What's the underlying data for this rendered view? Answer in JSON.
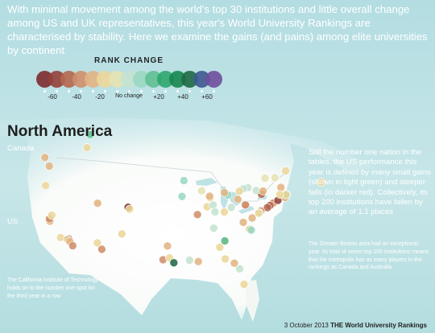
{
  "intro": "With minimal movement among the world's top 30 institutions and little overall change among US and UK representatives, this year's World University Rankings are characterised by stability. Here we examine the gains (and pains) among elite universities by continent",
  "legend": {
    "title": "RANK CHANGE",
    "labels": [
      "-60",
      "-40",
      "-20",
      "No change",
      "+20",
      "+40",
      "+60"
    ],
    "swatches": [
      "#7d2a2d",
      "#94403a",
      "#b5674e",
      "#cf8f6b",
      "#e2b483",
      "#ecd79a",
      "#e5e3b2",
      "#c4e3cf",
      "#9ad8c1",
      "#5fbf91",
      "#2ea66e",
      "#17874f",
      "#1f6a44",
      "#3f5990",
      "#6e4f9c"
    ]
  },
  "region": "North America",
  "countries": {
    "canada": "Canada",
    "us": "US"
  },
  "notes": {
    "us_summary": "Still the number one nation in the tables, the US performance this year is defined by many small gains (shown in light green) and steeper falls (in darker red). Collectively, its top 200 institutions have fallen by an average of 1.1 places",
    "boston": "The Greater Boston area had an exceptional year. Its total of seven top 200 institutions means that the metropolis has as many players in the rankings as Canada and Australia",
    "caltech": "The California Institute of Technology holds on to the number one spot for the third year in a row"
  },
  "footer": {
    "date": "3 October 2013",
    "publication": "THE World University Rankings"
  },
  "colors": {
    "background": "#b7dfe3",
    "land": "#f7f8f5",
    "water": "#bfe2e5",
    "marker_stroke": "#ffffff"
  },
  "universities": [
    {
      "lon": -122.3,
      "lat": 47.65,
      "color": "#e2b483"
    },
    {
      "lon": -123.25,
      "lat": 49.26,
      "color": "#e2b483"
    },
    {
      "lon": -113.5,
      "lat": 53.52,
      "color": "#5fbf91"
    },
    {
      "lon": -114.13,
      "lat": 51.08,
      "color": "#ecd79a"
    },
    {
      "lon": -122.17,
      "lat": 37.43,
      "color": "#e2b483"
    },
    {
      "lon": -122.26,
      "lat": 37.87,
      "color": "#cf8f6b"
    },
    {
      "lon": -121.76,
      "lat": 38.54,
      "color": "#ecd79a"
    },
    {
      "lon": -123.08,
      "lat": 44.05,
      "color": "#ecd79a"
    },
    {
      "lon": -119.85,
      "lat": 34.41,
      "color": "#ecd79a"
    },
    {
      "lon": -118.44,
      "lat": 34.07,
      "color": "#b5674e"
    },
    {
      "lon": -118.13,
      "lat": 34.14,
      "color": "#7d2a2d"
    },
    {
      "lon": -118.29,
      "lat": 34.02,
      "color": "#ecd79a"
    },
    {
      "lon": -117.84,
      "lat": 33.64,
      "color": "#e2b483"
    },
    {
      "lon": -117.23,
      "lat": 32.88,
      "color": "#cf8f6b"
    },
    {
      "lon": -111.93,
      "lat": 33.42,
      "color": "#ecd79a"
    },
    {
      "lon": -110.95,
      "lat": 32.23,
      "color": "#cf8f6b"
    },
    {
      "lon": -111.85,
      "lat": 40.76,
      "color": "#e2b483"
    },
    {
      "lon": -105.27,
      "lat": 40.01,
      "color": "#7d2a2d"
    },
    {
      "lon": -104.96,
      "lat": 39.68,
      "color": "#ecd79a"
    },
    {
      "lon": -106.62,
      "lat": 35.08,
      "color": "#ecd79a"
    },
    {
      "lon": -97.74,
      "lat": 30.28,
      "color": "#cf8f6b"
    },
    {
      "lon": -96.34,
      "lat": 30.62,
      "color": "#ecd79a"
    },
    {
      "lon": -95.4,
      "lat": 29.72,
      "color": "#1f6a44"
    },
    {
      "lon": -96.78,
      "lat": 32.84,
      "color": "#e2b483"
    },
    {
      "lon": -93.23,
      "lat": 44.97,
      "color": "#9ad8c1"
    },
    {
      "lon": -89.41,
      "lat": 43.07,
      "color": "#e5e3b2"
    },
    {
      "lon": -93.65,
      "lat": 42.03,
      "color": "#9ad8c1"
    },
    {
      "lon": -87.6,
      "lat": 41.79,
      "color": "#ecd79a"
    },
    {
      "lon": -87.68,
      "lat": 42.06,
      "color": "#e2b483"
    },
    {
      "lon": -88.23,
      "lat": 40.11,
      "color": "#ecd79a"
    },
    {
      "lon": -86.92,
      "lat": 40.42,
      "color": "#c4e3cf"
    },
    {
      "lon": -86.52,
      "lat": 39.17,
      "color": "#c4e3cf"
    },
    {
      "lon": -83.74,
      "lat": 42.28,
      "color": "#9ad8c1"
    },
    {
      "lon": -84.48,
      "lat": 42.73,
      "color": "#e2b483"
    },
    {
      "lon": -83.0,
      "lat": 40.0,
      "color": "#c4e3cf"
    },
    {
      "lon": -81.6,
      "lat": 41.5,
      "color": "#e2b483"
    },
    {
      "lon": -79.4,
      "lat": 43.66,
      "color": "#c4e3cf"
    },
    {
      "lon": -79.96,
      "lat": 40.44,
      "color": "#cf8f6b"
    },
    {
      "lon": -79.94,
      "lat": 40.45,
      "color": "#cf8f6b"
    },
    {
      "lon": -75.7,
      "lat": 45.42,
      "color": "#e5e3b2"
    },
    {
      "lon": -73.58,
      "lat": 45.5,
      "color": "#e5e3b2"
    },
    {
      "lon": -71.27,
      "lat": 46.78,
      "color": "#ecd79a"
    },
    {
      "lon": -63.58,
      "lat": 44.64,
      "color": "#ecd79a"
    },
    {
      "lon": -80.4,
      "lat": 43.47,
      "color": "#c4e3cf"
    },
    {
      "lon": -81.27,
      "lat": 43.0,
      "color": "#ecd79a"
    },
    {
      "lon": -76.48,
      "lat": 42.45,
      "color": "#b5674e"
    },
    {
      "lon": -77.6,
      "lat": 43.13,
      "color": "#c4e3cf"
    },
    {
      "lon": -76.14,
      "lat": 43.04,
      "color": "#e2b483"
    },
    {
      "lon": -73.96,
      "lat": 40.81,
      "color": "#cf8f6b"
    },
    {
      "lon": -74.66,
      "lat": 40.34,
      "color": "#b5674e"
    },
    {
      "lon": -72.92,
      "lat": 41.31,
      "color": "#94403a"
    },
    {
      "lon": -71.4,
      "lat": 41.83,
      "color": "#e2b483"
    },
    {
      "lon": -71.06,
      "lat": 42.37,
      "color": "#7d2a2d"
    },
    {
      "lon": -71.12,
      "lat": 42.37,
      "color": "#9ad8c1"
    },
    {
      "lon": -71.09,
      "lat": 42.36,
      "color": "#5fbf91"
    },
    {
      "lon": -71.17,
      "lat": 42.34,
      "color": "#ecd79a"
    },
    {
      "lon": -72.29,
      "lat": 43.7,
      "color": "#e2b483"
    },
    {
      "lon": -72.52,
      "lat": 42.39,
      "color": "#ecd79a"
    },
    {
      "lon": -75.19,
      "lat": 39.95,
      "color": "#b5674e"
    },
    {
      "lon": -76.62,
      "lat": 39.33,
      "color": "#cf8f6b"
    },
    {
      "lon": -76.94,
      "lat": 38.99,
      "color": "#c4e3cf"
    },
    {
      "lon": -77.07,
      "lat": 38.91,
      "color": "#ecd79a"
    },
    {
      "lon": -78.5,
      "lat": 38.03,
      "color": "#e2b483"
    },
    {
      "lon": -78.94,
      "lat": 36.0,
      "color": "#b5674e"
    },
    {
      "lon": -79.05,
      "lat": 35.91,
      "color": "#ecd79a"
    },
    {
      "lon": -78.68,
      "lat": 35.78,
      "color": "#9ad8c1"
    },
    {
      "lon": -80.42,
      "lat": 37.23,
      "color": "#e2b483"
    },
    {
      "lon": -84.32,
      "lat": 33.79,
      "color": "#e2b483"
    },
    {
      "lon": -84.4,
      "lat": 33.78,
      "color": "#5fbf91"
    },
    {
      "lon": -86.8,
      "lat": 36.14,
      "color": "#c4e3cf"
    },
    {
      "lon": -90.31,
      "lat": 38.65,
      "color": "#cf8f6b"
    },
    {
      "lon": -84.5,
      "lat": 39.13,
      "color": "#ecd79a"
    },
    {
      "lon": -82.35,
      "lat": 29.64,
      "color": "#e2b483"
    },
    {
      "lon": -80.26,
      "lat": 25.72,
      "color": "#ecd79a"
    },
    {
      "lon": -84.3,
      "lat": 30.44,
      "color": "#ecd79a"
    },
    {
      "lon": -81.2,
      "lat": 28.6,
      "color": "#c4e3cf"
    },
    {
      "lon": -90.12,
      "lat": 29.94,
      "color": "#e2b483"
    },
    {
      "lon": -92.02,
      "lat": 30.2,
      "color": "#c4e3cf"
    },
    {
      "lon": -85.48,
      "lat": 32.6,
      "color": "#ecd79a"
    }
  ]
}
